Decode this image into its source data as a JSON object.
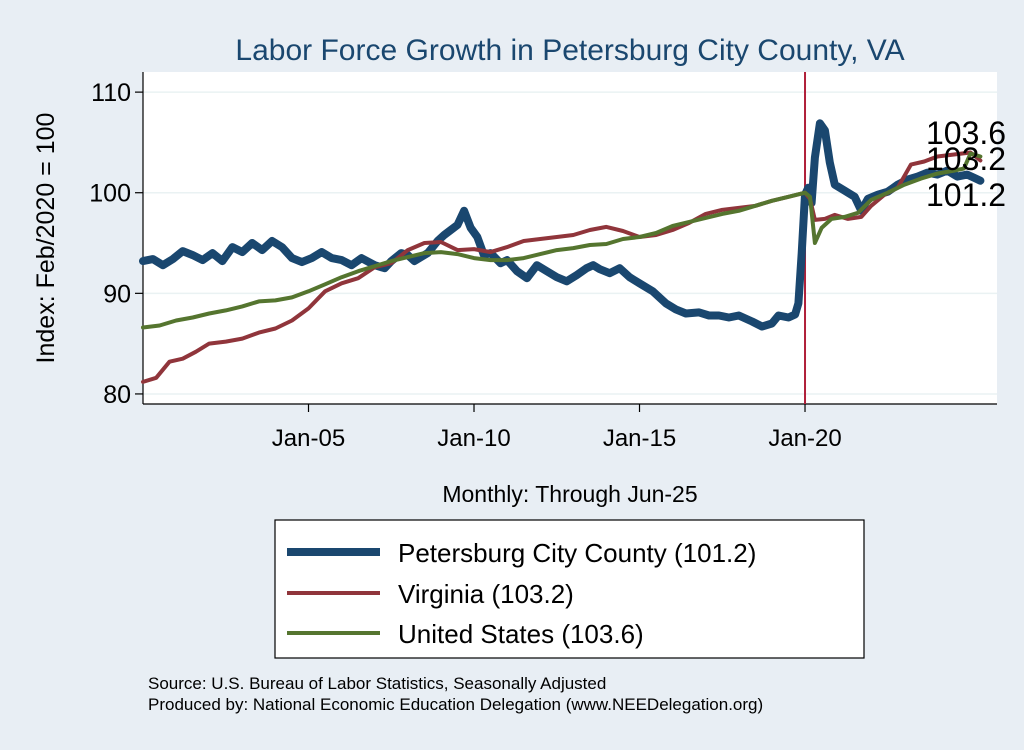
{
  "chart_data": {
    "type": "line",
    "title": "Labor Force Growth in Petersburg City  County, VA",
    "ylabel": "Index: Feb/2020 = 100",
    "xlabel": "Monthly: Through Jun-25",
    "ylim": [
      79,
      112
    ],
    "yticks": [
      80,
      90,
      100,
      110
    ],
    "xlim": [
      2000.0,
      2025.8
    ],
    "xticks": [
      {
        "label": "Jan-05",
        "value": 2005.0
      },
      {
        "label": "Jan-10",
        "value": 2010.0
      },
      {
        "label": "Jan-15",
        "value": 2015.0
      },
      {
        "label": "Jan-20",
        "value": 2020.0
      }
    ],
    "reference_line": {
      "x": 2020.0,
      "color": "#b0203a"
    },
    "colors": {
      "Petersburg City  County": "#1a476f",
      "Virginia": "#90353b",
      "United States": "#55752f"
    },
    "series": [
      {
        "name": "Petersburg City  County",
        "legend_label": "Petersburg City  County (101.2)",
        "end_label": "101.2",
        "points": [
          [
            2000.0,
            93.2
          ],
          [
            2000.3,
            93.4
          ],
          [
            2000.6,
            92.8
          ],
          [
            2000.9,
            93.4
          ],
          [
            2001.2,
            94.2
          ],
          [
            2001.5,
            93.8
          ],
          [
            2001.8,
            93.3
          ],
          [
            2002.1,
            94.0
          ],
          [
            2002.4,
            93.2
          ],
          [
            2002.7,
            94.6
          ],
          [
            2003.0,
            94.1
          ],
          [
            2003.3,
            95.0
          ],
          [
            2003.6,
            94.3
          ],
          [
            2003.9,
            95.2
          ],
          [
            2004.2,
            94.6
          ],
          [
            2004.5,
            93.5
          ],
          [
            2004.8,
            93.1
          ],
          [
            2005.1,
            93.5
          ],
          [
            2005.4,
            94.1
          ],
          [
            2005.7,
            93.5
          ],
          [
            2006.0,
            93.3
          ],
          [
            2006.3,
            92.8
          ],
          [
            2006.6,
            93.5
          ],
          [
            2007.0,
            92.8
          ],
          [
            2007.3,
            92.5
          ],
          [
            2007.5,
            93.2
          ],
          [
            2007.8,
            94.0
          ],
          [
            2008.0,
            93.8
          ],
          [
            2008.2,
            93.2
          ],
          [
            2008.4,
            93.6
          ],
          [
            2008.6,
            94.0
          ],
          [
            2008.9,
            95.2
          ],
          [
            2009.1,
            95.8
          ],
          [
            2009.3,
            96.3
          ],
          [
            2009.5,
            96.8
          ],
          [
            2009.7,
            98.2
          ],
          [
            2009.9,
            96.5
          ],
          [
            2010.1,
            95.6
          ],
          [
            2010.3,
            93.8
          ],
          [
            2010.5,
            94.0
          ],
          [
            2010.8,
            93.0
          ],
          [
            2011.0,
            93.3
          ],
          [
            2011.3,
            92.2
          ],
          [
            2011.6,
            91.5
          ],
          [
            2011.9,
            92.8
          ],
          [
            2012.2,
            92.2
          ],
          [
            2012.5,
            91.6
          ],
          [
            2012.8,
            91.2
          ],
          [
            2013.1,
            91.8
          ],
          [
            2013.4,
            92.5
          ],
          [
            2013.6,
            92.8
          ],
          [
            2013.8,
            92.4
          ],
          [
            2014.1,
            92.0
          ],
          [
            2014.4,
            92.5
          ],
          [
            2014.7,
            91.6
          ],
          [
            2015.0,
            91.0
          ],
          [
            2015.4,
            90.2
          ],
          [
            2015.8,
            89.0
          ],
          [
            2016.1,
            88.4
          ],
          [
            2016.4,
            88.0
          ],
          [
            2016.8,
            88.1
          ],
          [
            2017.1,
            87.8
          ],
          [
            2017.4,
            87.8
          ],
          [
            2017.7,
            87.6
          ],
          [
            2018.0,
            87.8
          ],
          [
            2018.4,
            87.2
          ],
          [
            2018.7,
            86.7
          ],
          [
            2019.0,
            87.0
          ],
          [
            2019.2,
            87.8
          ],
          [
            2019.5,
            87.6
          ],
          [
            2019.7,
            87.9
          ],
          [
            2019.8,
            89.0
          ],
          [
            2019.9,
            94.0
          ],
          [
            2020.0,
            99.8
          ],
          [
            2020.1,
            100.5
          ],
          [
            2020.2,
            99.0
          ],
          [
            2020.3,
            103.5
          ],
          [
            2020.45,
            106.9
          ],
          [
            2020.6,
            106.2
          ],
          [
            2020.75,
            103.0
          ],
          [
            2020.9,
            100.8
          ],
          [
            2021.2,
            100.2
          ],
          [
            2021.5,
            99.6
          ],
          [
            2021.7,
            98.2
          ],
          [
            2021.9,
            99.4
          ],
          [
            2022.2,
            99.8
          ],
          [
            2022.5,
            100.1
          ],
          [
            2022.8,
            100.8
          ],
          [
            2023.1,
            101.3
          ],
          [
            2023.4,
            101.6
          ],
          [
            2023.7,
            102.0
          ],
          [
            2024.0,
            101.8
          ],
          [
            2024.3,
            102.2
          ],
          [
            2024.6,
            101.6
          ],
          [
            2024.9,
            101.8
          ],
          [
            2025.1,
            101.5
          ],
          [
            2025.3,
            101.2
          ]
        ]
      },
      {
        "name": "Virginia",
        "legend_label": "Virginia (103.2)",
        "end_label": "103.2",
        "points": [
          [
            2000.0,
            81.2
          ],
          [
            2000.4,
            81.6
          ],
          [
            2000.8,
            83.2
          ],
          [
            2001.2,
            83.5
          ],
          [
            2001.6,
            84.2
          ],
          [
            2002.0,
            85.0
          ],
          [
            2002.5,
            85.2
          ],
          [
            2003.0,
            85.5
          ],
          [
            2003.5,
            86.1
          ],
          [
            2004.0,
            86.5
          ],
          [
            2004.5,
            87.3
          ],
          [
            2005.0,
            88.5
          ],
          [
            2005.5,
            90.2
          ],
          [
            2006.0,
            91.0
          ],
          [
            2006.5,
            91.5
          ],
          [
            2007.0,
            92.6
          ],
          [
            2007.5,
            93.0
          ],
          [
            2008.0,
            94.3
          ],
          [
            2008.5,
            95.0
          ],
          [
            2009.0,
            95.1
          ],
          [
            2009.5,
            94.3
          ],
          [
            2010.0,
            94.4
          ],
          [
            2010.5,
            94.1
          ],
          [
            2011.0,
            94.6
          ],
          [
            2011.5,
            95.2
          ],
          [
            2012.0,
            95.4
          ],
          [
            2012.5,
            95.6
          ],
          [
            2013.0,
            95.8
          ],
          [
            2013.5,
            96.3
          ],
          [
            2014.0,
            96.6
          ],
          [
            2014.5,
            96.2
          ],
          [
            2015.0,
            95.6
          ],
          [
            2015.5,
            95.8
          ],
          [
            2016.0,
            96.3
          ],
          [
            2016.5,
            97.0
          ],
          [
            2017.0,
            97.9
          ],
          [
            2017.5,
            98.3
          ],
          [
            2018.0,
            98.5
          ],
          [
            2018.5,
            98.7
          ],
          [
            2019.0,
            99.2
          ],
          [
            2019.5,
            99.6
          ],
          [
            2020.0,
            100.0
          ],
          [
            2020.15,
            99.4
          ],
          [
            2020.3,
            97.3
          ],
          [
            2020.6,
            97.4
          ],
          [
            2020.9,
            97.8
          ],
          [
            2021.3,
            97.4
          ],
          [
            2021.7,
            97.6
          ],
          [
            2022.0,
            98.7
          ],
          [
            2022.4,
            99.8
          ],
          [
            2022.8,
            100.5
          ],
          [
            2023.2,
            102.8
          ],
          [
            2023.6,
            103.1
          ],
          [
            2024.0,
            103.6
          ],
          [
            2024.5,
            103.8
          ],
          [
            2025.0,
            104.0
          ],
          [
            2025.3,
            103.2
          ]
        ]
      },
      {
        "name": "United States",
        "legend_label": "United States (103.6)",
        "end_label": "103.6",
        "points": [
          [
            2000.0,
            86.6
          ],
          [
            2000.5,
            86.8
          ],
          [
            2001.0,
            87.3
          ],
          [
            2001.5,
            87.6
          ],
          [
            2002.0,
            88.0
          ],
          [
            2002.5,
            88.3
          ],
          [
            2003.0,
            88.7
          ],
          [
            2003.5,
            89.2
          ],
          [
            2004.0,
            89.3
          ],
          [
            2004.5,
            89.6
          ],
          [
            2005.0,
            90.2
          ],
          [
            2005.5,
            90.9
          ],
          [
            2006.0,
            91.6
          ],
          [
            2006.5,
            92.2
          ],
          [
            2007.0,
            92.7
          ],
          [
            2007.5,
            93.2
          ],
          [
            2008.0,
            93.6
          ],
          [
            2008.5,
            94.0
          ],
          [
            2009.0,
            94.1
          ],
          [
            2009.5,
            93.9
          ],
          [
            2010.0,
            93.5
          ],
          [
            2010.5,
            93.3
          ],
          [
            2011.0,
            93.3
          ],
          [
            2011.5,
            93.5
          ],
          [
            2012.0,
            93.9
          ],
          [
            2012.5,
            94.3
          ],
          [
            2013.0,
            94.5
          ],
          [
            2013.5,
            94.8
          ],
          [
            2014.0,
            94.9
          ],
          [
            2014.5,
            95.4
          ],
          [
            2015.0,
            95.6
          ],
          [
            2015.5,
            96.0
          ],
          [
            2016.0,
            96.7
          ],
          [
            2016.5,
            97.1
          ],
          [
            2017.0,
            97.5
          ],
          [
            2017.5,
            97.9
          ],
          [
            2018.0,
            98.2
          ],
          [
            2018.5,
            98.7
          ],
          [
            2019.0,
            99.2
          ],
          [
            2019.5,
            99.6
          ],
          [
            2020.0,
            100.0
          ],
          [
            2020.15,
            99.6
          ],
          [
            2020.3,
            95.0
          ],
          [
            2020.5,
            96.5
          ],
          [
            2020.8,
            97.4
          ],
          [
            2021.2,
            97.6
          ],
          [
            2021.6,
            98.0
          ],
          [
            2022.0,
            99.3
          ],
          [
            2022.5,
            100.0
          ],
          [
            2023.0,
            100.8
          ],
          [
            2023.5,
            101.4
          ],
          [
            2024.0,
            101.9
          ],
          [
            2024.5,
            102.2
          ],
          [
            2024.8,
            102.4
          ],
          [
            2025.0,
            103.9
          ],
          [
            2025.3,
            103.6
          ]
        ]
      }
    ]
  },
  "footer": {
    "source": "Source: U.S. Bureau of Labor Statistics, Seasonally Adjusted",
    "produced_by": "Produced by: National Economic Education Delegation (www.NEEDelegation.org)"
  }
}
